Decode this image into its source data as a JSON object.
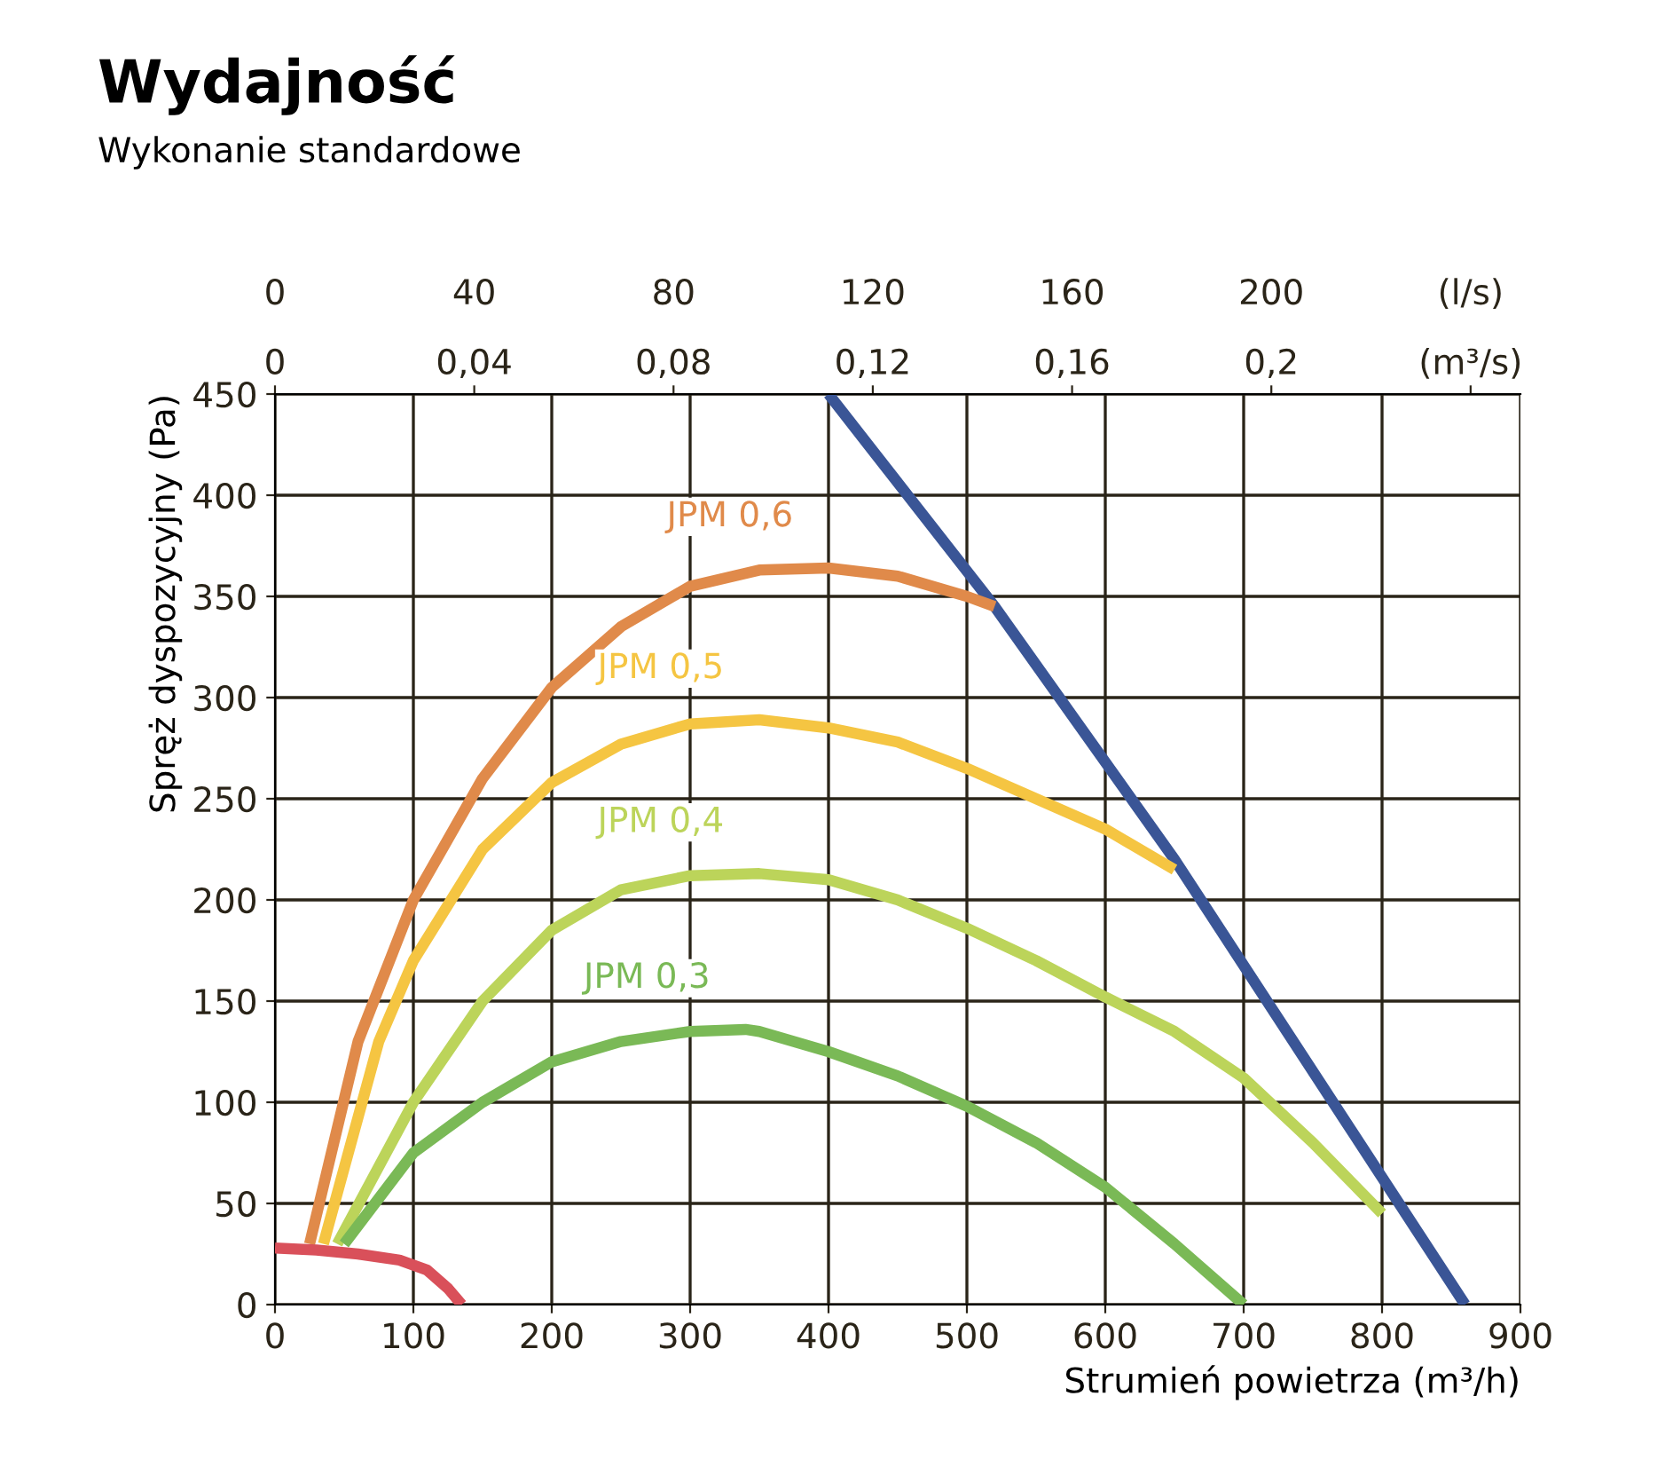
{
  "chart_data": {
    "type": "line",
    "title": "Wydajność",
    "subtitle": "Wykonanie standardowe",
    "xlabel": "Strumień powietrza (m³/h)",
    "ylabel": "Spręż dyspozycyjny (Pa)",
    "xlim": [
      0,
      900
    ],
    "xticks": [
      0,
      100,
      200,
      300,
      400,
      500,
      600,
      700,
      800,
      900
    ],
    "ylim": [
      0,
      450
    ],
    "yticks": [
      0,
      50,
      100,
      150,
      200,
      250,
      300,
      350,
      400,
      450
    ],
    "x2lim": [
      0,
      250
    ],
    "x2ticks": [
      0,
      40,
      80,
      120,
      160,
      200,
      {
        "value": 240,
        "label": "(l/s)"
      }
    ],
    "annotations": [
      "0",
      "0,04",
      "0,08",
      "0,12",
      "0,16",
      "0,2",
      "(m³/s)"
    ],
    "grid": true,
    "legend": false,
    "marker": "none",
    "line_style": "solid",
    "series": [
      {
        "color": "#3a5596",
        "x": [
          400,
          520,
          650,
          860
        ],
        "values": [
          450,
          345,
          220,
          0
        ]
      },
      {
        "name": "JPM 0,6",
        "color": "#e08a4a",
        "x": [
          25,
          60,
          100,
          150,
          200,
          250,
          300,
          350,
          400,
          450,
          500,
          520
        ],
        "values": [
          30,
          130,
          200,
          260,
          305,
          335,
          355,
          363,
          364,
          360,
          350,
          345
        ]
      },
      {
        "name": "JPM 0,5",
        "color": "#f5c542",
        "x": [
          35,
          75,
          100,
          150,
          200,
          250,
          300,
          350,
          400,
          450,
          500,
          550,
          600,
          650
        ],
        "values": [
          30,
          130,
          170,
          225,
          258,
          277,
          287,
          289,
          285,
          278,
          265,
          250,
          235,
          215
        ]
      },
      {
        "name": "JPM 0,4",
        "color": "#bcd45a",
        "x": [
          45,
          100,
          150,
          200,
          250,
          300,
          350,
          400,
          450,
          500,
          550,
          600,
          650,
          700,
          750,
          800
        ],
        "values": [
          30,
          100,
          150,
          185,
          205,
          212,
          213,
          210,
          200,
          186,
          170,
          152,
          135,
          112,
          80,
          45
        ]
      },
      {
        "name": "JPM 0,3",
        "color": "#7ab956",
        "x": [
          50,
          100,
          150,
          200,
          250,
          300,
          340,
          350,
          400,
          450,
          500,
          550,
          600,
          650,
          700
        ],
        "values": [
          30,
          75,
          100,
          120,
          130,
          135,
          136,
          135,
          125,
          113,
          98,
          80,
          58,
          30,
          0
        ]
      },
      {
        "color": "#d9505a",
        "x": [
          0,
          30,
          60,
          90,
          110,
          125,
          135
        ],
        "values": [
          28,
          27,
          25,
          22,
          17,
          8,
          0
        ]
      }
    ]
  }
}
